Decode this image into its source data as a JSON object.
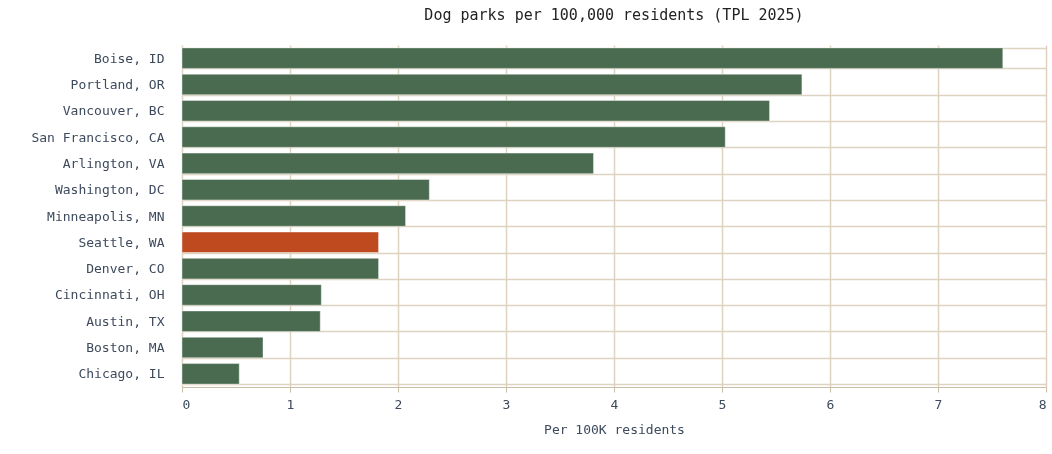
{
  "chart_data": {
    "type": "bar",
    "orientation": "horizontal",
    "title": "Dog parks per 100,000 residents (TPL 2025)",
    "xlabel": "Per 100K residents",
    "categories": [
      "Boise, ID",
      "Portland, OR",
      "Vancouver, BC",
      "San Francisco, CA",
      "Arlington, VA",
      "Washington, DC",
      "Minneapolis, MN",
      "Seattle, WA",
      "Denver, CO",
      "Cincinnati, OH",
      "Austin, TX",
      "Boston, MA",
      "Chicago, IL"
    ],
    "values": [
      7.6,
      5.74,
      5.44,
      5.03,
      3.81,
      2.29,
      2.07,
      1.82,
      1.82,
      1.29,
      1.28,
      0.75,
      0.53
    ],
    "colors": [
      "#4a6b50",
      "#4a6b50",
      "#4a6b50",
      "#4a6b50",
      "#4a6b50",
      "#4a6b50",
      "#4a6b50",
      "#bf4a1f",
      "#4a6b50",
      "#4a6b50",
      "#4a6b50",
      "#4a6b50",
      "#4a6b50"
    ],
    "xlim": [
      0,
      8
    ],
    "xticks": [
      0,
      1,
      2,
      3,
      4,
      5,
      6,
      7,
      8
    ],
    "grid": true
  }
}
